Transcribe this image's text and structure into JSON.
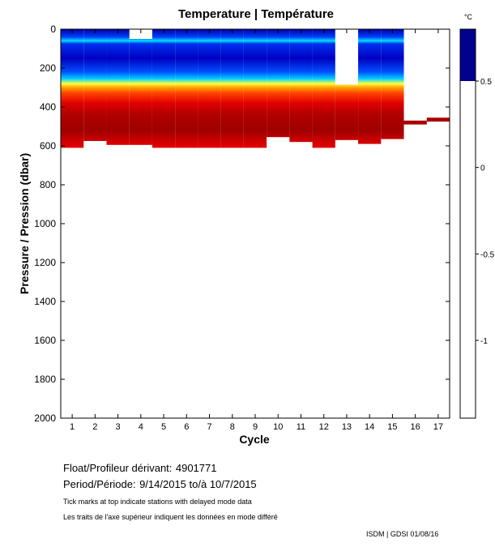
{
  "chart_data": {
    "type": "heatmap",
    "title": "Temperature | Température",
    "xlabel": "Cycle",
    "ylabel": "Pressure / Pression (dbar)",
    "x_ticks": [
      1,
      2,
      3,
      4,
      5,
      6,
      7,
      8,
      9,
      10,
      11,
      12,
      13,
      14,
      15,
      16,
      17
    ],
    "xlim": [
      0.5,
      17.5
    ],
    "ylim": [
      0,
      2000
    ],
    "y_ticks": [
      0,
      200,
      400,
      600,
      800,
      1000,
      1200,
      1400,
      1600,
      1800,
      2000
    ],
    "y_reversed": true,
    "colorbar": {
      "unit": "°C",
      "ticks": [
        {
          "value": 0.5,
          "label": "0.5"
        },
        {
          "value": 0,
          "label": "0"
        },
        {
          "value": -0.5,
          "label": "-0.5"
        },
        {
          "value": -1,
          "label": "-1"
        }
      ]
    },
    "profiles": [
      {
        "cycle": 1,
        "top_dbar": 0,
        "bottom_dbar": 610
      },
      {
        "cycle": 2,
        "top_dbar": 0,
        "bottom_dbar": 575
      },
      {
        "cycle": 3,
        "top_dbar": 0,
        "bottom_dbar": 595
      },
      {
        "cycle": 4,
        "top_dbar": 50,
        "bottom_dbar": 595
      },
      {
        "cycle": 5,
        "top_dbar": 0,
        "bottom_dbar": 610
      },
      {
        "cycle": 6,
        "top_dbar": 0,
        "bottom_dbar": 610
      },
      {
        "cycle": 7,
        "top_dbar": 0,
        "bottom_dbar": 610
      },
      {
        "cycle": 8,
        "top_dbar": 0,
        "bottom_dbar": 610
      },
      {
        "cycle": 9,
        "top_dbar": 0,
        "bottom_dbar": 610
      },
      {
        "cycle": 10,
        "top_dbar": 0,
        "bottom_dbar": 555
      },
      {
        "cycle": 11,
        "top_dbar": 0,
        "bottom_dbar": 580
      },
      {
        "cycle": 12,
        "top_dbar": 0,
        "bottom_dbar": 610
      },
      {
        "cycle": 13,
        "top_dbar": 285,
        "bottom_dbar": 570
      },
      {
        "cycle": 14,
        "top_dbar": 0,
        "bottom_dbar": 590
      },
      {
        "cycle": 15,
        "top_dbar": 0,
        "bottom_dbar": 565
      },
      {
        "cycle": 16,
        "top_dbar": 470,
        "bottom_dbar": 490
      },
      {
        "cycle": 17,
        "top_dbar": 455,
        "bottom_dbar": 475
      }
    ],
    "color_by_depth": [
      {
        "dbar": 0,
        "color": "#0000a0"
      },
      {
        "dbar": 40,
        "color": "#0040ff"
      },
      {
        "dbar": 60,
        "color": "#00e0ff"
      },
      {
        "dbar": 75,
        "color": "#0030f0"
      },
      {
        "dbar": 150,
        "color": "#0000c0"
      },
      {
        "dbar": 220,
        "color": "#0050ff"
      },
      {
        "dbar": 255,
        "color": "#00d0ff"
      },
      {
        "dbar": 280,
        "color": "#ffff40"
      },
      {
        "dbar": 300,
        "color": "#ffa000"
      },
      {
        "dbar": 330,
        "color": "#ff4000"
      },
      {
        "dbar": 380,
        "color": "#e00000"
      },
      {
        "dbar": 440,
        "color": "#b00000"
      },
      {
        "dbar": 520,
        "color": "#a00000"
      },
      {
        "dbar": 600,
        "color": "#e00000"
      }
    ]
  },
  "info": {
    "float_label": "Float/Profileur dérivant:",
    "float_value": "4901771",
    "period_label": "Period/Période:",
    "period_value": "9/14/2015  to/à  10/7/2015",
    "note_en": "Tick marks at top indicate stations with delayed mode data",
    "note_fr": "Les traits de l'axe supérieur indiquent les données en mode différé",
    "footer": "ISDM | GDSI  01/08/16"
  }
}
